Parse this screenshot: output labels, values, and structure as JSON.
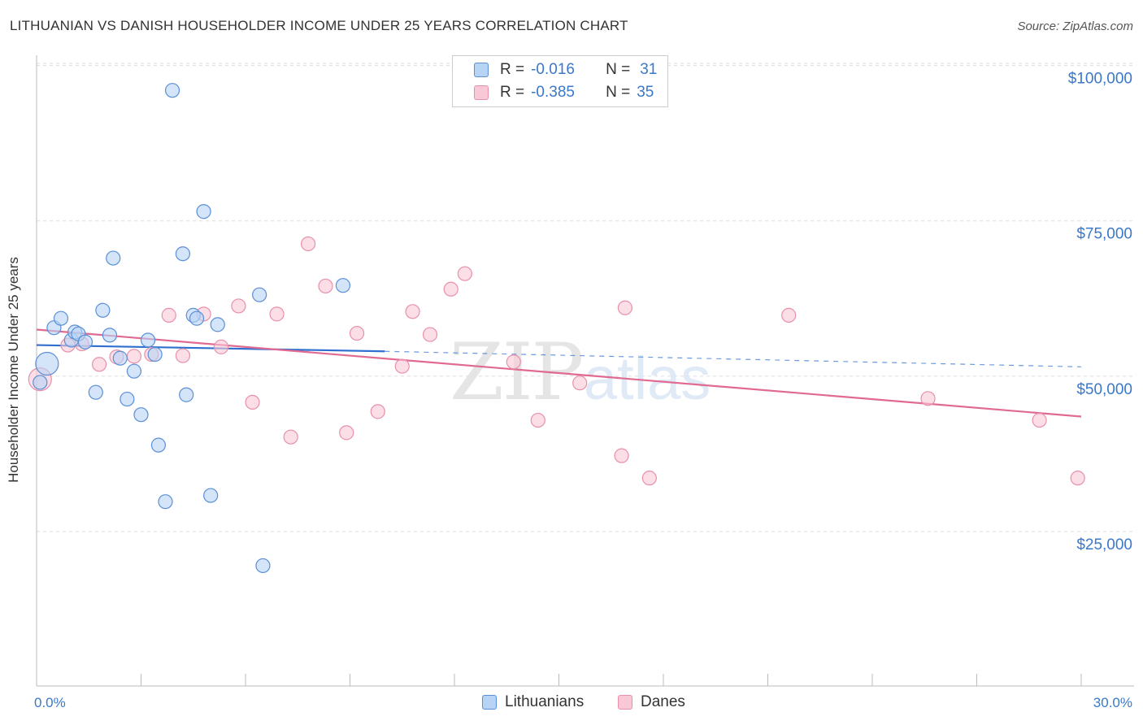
{
  "title": "LITHUANIAN VS DANISH HOUSEHOLDER INCOME UNDER 25 YEARS CORRELATION CHART",
  "source": "Source: ZipAtlas.com",
  "watermark": {
    "zip": "ZIP",
    "atlas": "atlas"
  },
  "colors": {
    "lithuanians_fill": "#b8d4f5",
    "lithuanians_stroke": "#5b8fd6",
    "lithuanians_line": "#2f6fcf",
    "danes_fill": "#f9c8d6",
    "danes_stroke": "#e890aa",
    "danes_line": "#e06a92",
    "tick_label": "#3a78c9",
    "grid": "#dddddd"
  },
  "legend": {
    "r_label": "R =",
    "n_label": "N =",
    "lithuanians": {
      "r": "-0.016",
      "n": "31"
    },
    "danes": {
      "r": "-0.385",
      "n": "35"
    }
  },
  "chart_data": {
    "type": "scatter",
    "title": "LITHUANIAN VS DANISH HOUSEHOLDER INCOME UNDER 25 YEARS CORRELATION CHART",
    "xlabel": "",
    "ylabel": "Householder Income Under 25 years",
    "xlim": [
      0,
      30
    ],
    "ylim": [
      0,
      105000
    ],
    "x_tick_labels": [
      "0.0%",
      "30.0%"
    ],
    "y_ticks": [
      25000,
      50000,
      75000,
      100000
    ],
    "y_tick_labels": [
      "$25,000",
      "$50,000",
      "$75,000",
      "$100,000"
    ],
    "grid": true,
    "legend_position": "top-center",
    "series": [
      {
        "name": "Lithuanians",
        "trend": {
          "x": [
            0,
            10
          ],
          "y": [
            55000,
            54000
          ]
        },
        "trend_extension": {
          "x": [
            10,
            30
          ],
          "y": [
            54000,
            51500
          ]
        },
        "points": [
          {
            "x": 0.3,
            "y": 52000,
            "big": true
          },
          {
            "x": 0.5,
            "y": 57800
          },
          {
            "x": 0.7,
            "y": 59300
          },
          {
            "x": 1.0,
            "y": 55800
          },
          {
            "x": 1.1,
            "y": 57100
          },
          {
            "x": 1.2,
            "y": 56800
          },
          {
            "x": 1.4,
            "y": 55500
          },
          {
            "x": 1.7,
            "y": 47400
          },
          {
            "x": 1.9,
            "y": 60600
          },
          {
            "x": 2.1,
            "y": 56600
          },
          {
            "x": 2.2,
            "y": 69000
          },
          {
            "x": 2.4,
            "y": 52900
          },
          {
            "x": 2.6,
            "y": 46300
          },
          {
            "x": 2.8,
            "y": 50800
          },
          {
            "x": 3.0,
            "y": 43800
          },
          {
            "x": 3.2,
            "y": 55800
          },
          {
            "x": 3.4,
            "y": 53500
          },
          {
            "x": 3.5,
            "y": 38900
          },
          {
            "x": 3.7,
            "y": 29800
          },
          {
            "x": 3.9,
            "y": 96000
          },
          {
            "x": 4.2,
            "y": 69700
          },
          {
            "x": 4.3,
            "y": 47000
          },
          {
            "x": 4.5,
            "y": 59800
          },
          {
            "x": 4.6,
            "y": 59300
          },
          {
            "x": 4.8,
            "y": 76500
          },
          {
            "x": 5.0,
            "y": 30800
          },
          {
            "x": 5.2,
            "y": 58300
          },
          {
            "x": 6.4,
            "y": 63100
          },
          {
            "x": 6.5,
            "y": 19500
          },
          {
            "x": 8.8,
            "y": 64600
          },
          {
            "x": 0.1,
            "y": 49000
          }
        ]
      },
      {
        "name": "Danes",
        "trend": {
          "x": [
            0,
            30
          ],
          "y": [
            57500,
            43500
          ]
        },
        "points": [
          {
            "x": 0.1,
            "y": 49500,
            "big": true
          },
          {
            "x": 0.9,
            "y": 55000
          },
          {
            "x": 1.3,
            "y": 55200
          },
          {
            "x": 1.8,
            "y": 51900
          },
          {
            "x": 2.3,
            "y": 53100
          },
          {
            "x": 2.8,
            "y": 53200
          },
          {
            "x": 3.3,
            "y": 53500
          },
          {
            "x": 3.8,
            "y": 59800
          },
          {
            "x": 4.2,
            "y": 53300
          },
          {
            "x": 4.8,
            "y": 60000
          },
          {
            "x": 5.3,
            "y": 54700
          },
          {
            "x": 5.8,
            "y": 61300
          },
          {
            "x": 6.2,
            "y": 45800
          },
          {
            "x": 6.9,
            "y": 60000
          },
          {
            "x": 7.3,
            "y": 40200
          },
          {
            "x": 7.8,
            "y": 71300
          },
          {
            "x": 8.3,
            "y": 64500
          },
          {
            "x": 8.9,
            "y": 40900
          },
          {
            "x": 9.2,
            "y": 56900
          },
          {
            "x": 9.8,
            "y": 44300
          },
          {
            "x": 10.5,
            "y": 51600
          },
          {
            "x": 10.8,
            "y": 60400
          },
          {
            "x": 11.3,
            "y": 56700
          },
          {
            "x": 11.9,
            "y": 64000
          },
          {
            "x": 12.3,
            "y": 66500
          },
          {
            "x": 13.7,
            "y": 52300
          },
          {
            "x": 14.4,
            "y": 42900
          },
          {
            "x": 15.6,
            "y": 48900
          },
          {
            "x": 16.8,
            "y": 37200
          },
          {
            "x": 16.9,
            "y": 61000
          },
          {
            "x": 17.6,
            "y": 33600
          },
          {
            "x": 21.6,
            "y": 59800
          },
          {
            "x": 25.6,
            "y": 46400
          },
          {
            "x": 28.8,
            "y": 42900
          },
          {
            "x": 29.9,
            "y": 33600
          }
        ]
      }
    ]
  }
}
